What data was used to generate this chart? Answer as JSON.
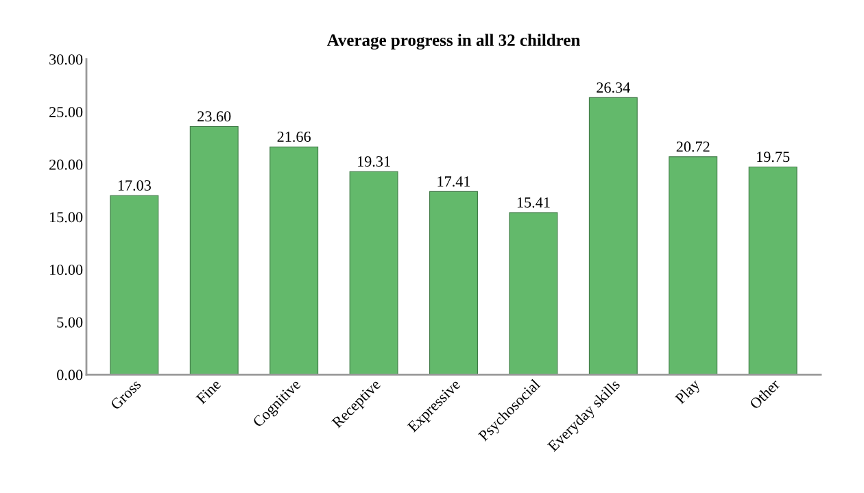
{
  "chart_data": {
    "type": "bar",
    "title": "Average progress in all 32 children",
    "categories": [
      "Gross",
      "Fine",
      "Cognitive",
      "Receptive",
      "Expressive",
      "Psychosocial",
      "Everyday skills",
      "Play",
      "Other"
    ],
    "values": [
      17.03,
      23.6,
      21.66,
      19.31,
      17.41,
      15.41,
      26.34,
      20.72,
      19.75
    ],
    "value_labels": [
      "17.03",
      "23.60",
      "21.66",
      "19.31",
      "17.41",
      "15.41",
      "26.34",
      "20.72",
      "19.75"
    ],
    "color": "#63b96b",
    "ylim": [
      0,
      30
    ],
    "yticks": [
      {
        "value": 0,
        "label": "0.00"
      },
      {
        "value": 5,
        "label": "5.00"
      },
      {
        "value": 10,
        "label": "10.00"
      },
      {
        "value": 15,
        "label": "15.00"
      },
      {
        "value": 20,
        "label": "20.00"
      },
      {
        "value": 25,
        "label": "25.00"
      },
      {
        "value": 30,
        "label": "30.00"
      }
    ],
    "grid": false
  }
}
